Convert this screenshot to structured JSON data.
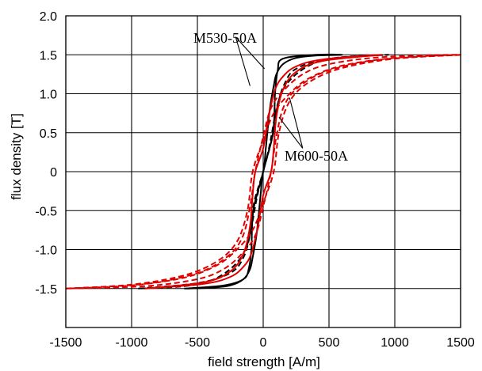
{
  "chart_data": {
    "type": "line",
    "xlabel": "field strength [A/m]",
    "ylabel": "flux density [T]",
    "xlim": [
      -1500,
      1500
    ],
    "ylim": [
      -2.0,
      2.0
    ],
    "grid": true,
    "x_ticks": [
      -1500,
      -1000,
      -500,
      0,
      500,
      1000,
      1500
    ],
    "x_tick_labels": [
      "-1500",
      "-1000",
      "-500",
      "0",
      "500",
      "1000",
      "1500"
    ],
    "y_ticks": [
      2.0,
      1.5,
      1.0,
      0.5,
      0,
      -0.5,
      -1.0,
      -1.5
    ],
    "y_tick_labels": [
      "2.0",
      "1.5",
      "1.0",
      "0.5",
      "0",
      "-0.5",
      "-1.0",
      "-1.5"
    ],
    "annotations": [
      {
        "text": "M530-50A"
      },
      {
        "text": "M600-50A"
      }
    ],
    "colors": {
      "black": "#000000",
      "red": "#e00000"
    },
    "series": [
      {
        "color": "#000000",
        "dash": false,
        "x": [
          -600,
          -300,
          -150,
          -110,
          -90,
          -75,
          0,
          20,
          50,
          80,
          100,
          150,
          250,
          400,
          600,
          400,
          150,
          110,
          90,
          75,
          0,
          -20,
          -50,
          -80,
          -100,
          -150,
          -250,
          -400,
          -600
        ],
        "y": [
          -1.5,
          -1.46,
          -1.38,
          -1.25,
          -1.0,
          -0.5,
          0.0,
          0.3,
          0.8,
          1.1,
          1.25,
          1.38,
          1.46,
          1.49,
          1.5,
          1.5,
          1.45,
          1.3,
          1.0,
          0.5,
          0.0,
          -0.3,
          -0.8,
          -1.1,
          -1.25,
          -1.38,
          -1.46,
          -1.49,
          -1.5
        ]
      },
      {
        "color": "#000000",
        "dash": true,
        "x": [
          -950,
          -500,
          -250,
          -150,
          -100,
          -70,
          0,
          50,
          100,
          150,
          250,
          400,
          600,
          950,
          500,
          250,
          160,
          110,
          70,
          0,
          -50,
          -100,
          -150,
          -250,
          -400,
          -600,
          -950
        ],
        "y": [
          -1.5,
          -1.43,
          -1.3,
          -1.1,
          -0.8,
          -0.4,
          0.0,
          0.35,
          0.8,
          1.05,
          1.25,
          1.4,
          1.47,
          1.5,
          1.45,
          1.32,
          1.12,
          0.85,
          0.45,
          0.0,
          -0.35,
          -0.8,
          -1.05,
          -1.25,
          -1.4,
          -1.47,
          -1.5
        ]
      },
      {
        "color": "#e00000",
        "dash": false,
        "x": [
          -900,
          -450,
          -250,
          -150,
          -100,
          -80,
          -60,
          0,
          40,
          90,
          150,
          250,
          450,
          900,
          450,
          250,
          150,
          100,
          80,
          60,
          0,
          -40,
          -90,
          -150,
          -250,
          -450,
          -900
        ],
        "y": [
          -1.5,
          -1.42,
          -1.28,
          -1.05,
          -0.7,
          -0.3,
          0.0,
          0.3,
          0.7,
          1.05,
          1.22,
          1.35,
          1.44,
          1.5,
          1.42,
          1.28,
          1.05,
          0.7,
          0.3,
          0.0,
          -0.3,
          -0.7,
          -1.05,
          -1.22,
          -1.35,
          -1.44,
          -1.5
        ]
      },
      {
        "color": "#e00000",
        "dash": true,
        "x": [
          -1500,
          -1000,
          -600,
          -350,
          -200,
          -120,
          -80,
          0,
          80,
          200,
          350,
          600,
          1000,
          1500,
          1000,
          600,
          350,
          200,
          120,
          80,
          0,
          -80,
          -200,
          -350,
          -600,
          -1000,
          -1500
        ],
        "y": [
          -1.5,
          -1.45,
          -1.33,
          -1.15,
          -0.9,
          -0.5,
          0.0,
          0.4,
          0.75,
          1.0,
          1.2,
          1.36,
          1.46,
          1.5,
          1.45,
          1.33,
          1.15,
          0.9,
          0.5,
          0.0,
          -0.4,
          -0.75,
          -1.0,
          -1.2,
          -1.36,
          -1.46,
          -1.5
        ]
      },
      {
        "color": "#e00000",
        "dash": true,
        "x": [
          -1500,
          -900,
          -500,
          -280,
          -160,
          -100,
          -60,
          0,
          60,
          160,
          300,
          500,
          900,
          1500,
          900,
          500,
          280,
          160,
          100,
          60,
          0,
          -60,
          -160,
          -300,
          -500,
          -900,
          -1500
        ],
        "y": [
          -1.5,
          -1.44,
          -1.3,
          -1.1,
          -0.85,
          -0.45,
          0.0,
          0.45,
          0.82,
          1.05,
          1.25,
          1.38,
          1.47,
          1.5,
          1.44,
          1.3,
          1.1,
          0.85,
          0.45,
          0.0,
          -0.45,
          -0.82,
          -1.05,
          -1.25,
          -1.38,
          -1.47,
          -1.5
        ]
      }
    ]
  }
}
